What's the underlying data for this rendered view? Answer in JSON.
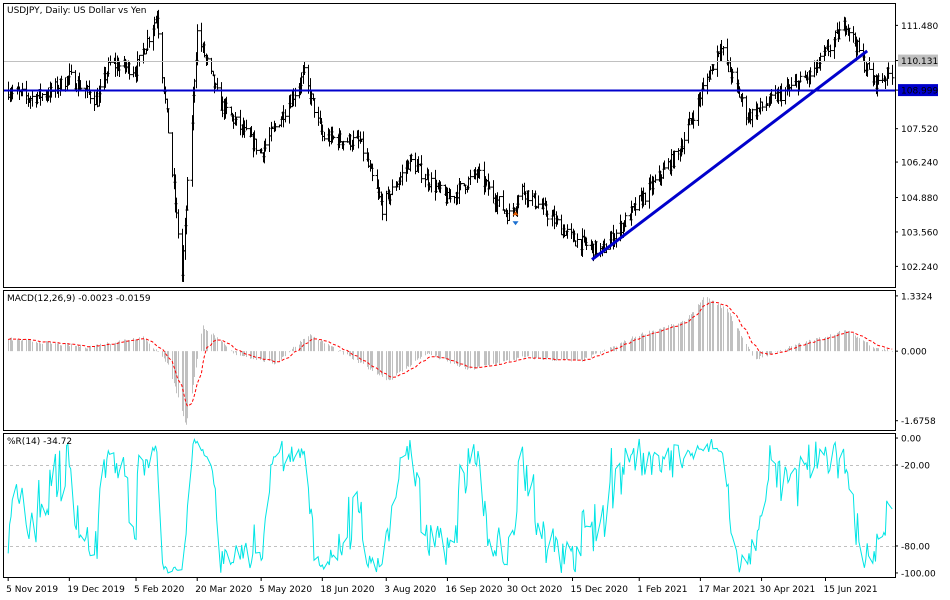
{
  "chart_data": [
    {
      "type": "bar",
      "panel": "price",
      "title": "USDJPY, Daily:  US Dollar vs Yen",
      "ylim": [
        101.45,
        112.3
      ],
      "yticks": [
        "111.480",
        "110.131",
        "108.999",
        "107.520",
        "106.240",
        "104.880",
        "103.560",
        "102.240"
      ],
      "ytick_values": [
        111.48,
        110.131,
        108.999,
        107.52,
        106.24,
        104.88,
        103.56,
        102.24
      ],
      "reference_lines": [
        {
          "name": "level",
          "value": 108.999,
          "color": "#0000cc",
          "label": "108.999"
        },
        {
          "name": "last-price",
          "value": 110.131,
          "color": "#c0c0c0",
          "label": "110.131"
        }
      ],
      "trendline": {
        "from": {
          "date": "2020-12-29",
          "value": 102.5
        },
        "to": {
          "date": "2021-07-15",
          "value": 110.5
        },
        "color": "#0000cc"
      },
      "price_path": [
        [
          "2019-11-05",
          109.0
        ],
        [
          "2019-11-20",
          108.7
        ],
        [
          "2019-12-05",
          108.9
        ],
        [
          "2019-12-19",
          109.5
        ],
        [
          "2020-01-08",
          108.6
        ],
        [
          "2020-01-17",
          110.0
        ],
        [
          "2020-02-05",
          109.8
        ],
        [
          "2020-02-20",
          111.9
        ],
        [
          "2020-03-09",
          101.9
        ],
        [
          "2020-03-20",
          111.2
        ],
        [
          "2020-04-05",
          108.5
        ],
        [
          "2020-05-05",
          106.6
        ],
        [
          "2020-06-05",
          109.6
        ],
        [
          "2020-06-18",
          107.2
        ],
        [
          "2020-07-15",
          107.0
        ],
        [
          "2020-07-31",
          104.5
        ],
        [
          "2020-08-20",
          106.3
        ],
        [
          "2020-09-16",
          104.8
        ],
        [
          "2020-10-07",
          105.8
        ],
        [
          "2020-10-30",
          104.2
        ],
        [
          "2020-11-09",
          105.2
        ],
        [
          "2020-12-15",
          103.3
        ],
        [
          "2021-01-05",
          102.8
        ],
        [
          "2021-02-01",
          104.7
        ],
        [
          "2021-03-01",
          106.6
        ],
        [
          "2021-03-31",
          110.7
        ],
        [
          "2021-04-20",
          108.0
        ],
        [
          "2021-05-10",
          108.7
        ],
        [
          "2021-06-05",
          109.6
        ],
        [
          "2021-06-30",
          111.6
        ],
        [
          "2021-07-12",
          110.1
        ],
        [
          "2021-07-20",
          109.3
        ],
        [
          "2021-08-02",
          109.7
        ]
      ],
      "marker": {
        "date": "2020-11-04",
        "value": 104.2
      }
    },
    {
      "type": "bar",
      "panel": "macd",
      "title": "MACD(12,26,9) -0.0023 -0.0159",
      "ylim": [
        -1.9,
        1.45
      ],
      "yticks": [
        "1.3324",
        "0.000",
        "-1.6758"
      ],
      "ytick_values": [
        1.3324,
        0.0,
        -1.6758
      ],
      "series": [
        {
          "name": "MACD",
          "style": "histogram",
          "color": "#c0c0c0"
        },
        {
          "name": "Signal",
          "style": "dashed",
          "color": "#ff0000"
        }
      ],
      "macd_path": [
        [
          "2019-11-05",
          0.3
        ],
        [
          "2020-01-01",
          0.1
        ],
        [
          "2020-02-10",
          0.35
        ],
        [
          "2020-02-28",
          -0.3
        ],
        [
          "2020-03-12",
          -1.8
        ],
        [
          "2020-03-24",
          0.6
        ],
        [
          "2020-04-15",
          -0.05
        ],
        [
          "2020-05-15",
          -0.3
        ],
        [
          "2020-06-08",
          0.4
        ],
        [
          "2020-06-25",
          0.1
        ],
        [
          "2020-08-05",
          -0.7
        ],
        [
          "2020-09-01",
          -0.05
        ],
        [
          "2020-10-01",
          -0.45
        ],
        [
          "2020-11-10",
          -0.15
        ],
        [
          "2020-12-20",
          -0.25
        ],
        [
          "2021-01-10",
          0.05
        ],
        [
          "2021-02-01",
          0.4
        ],
        [
          "2021-03-05",
          0.7
        ],
        [
          "2021-03-20",
          1.3
        ],
        [
          "2021-04-05",
          1.0
        ],
        [
          "2021-04-25",
          -0.2
        ],
        [
          "2021-05-25",
          0.15
        ],
        [
          "2021-06-30",
          0.5
        ],
        [
          "2021-07-20",
          0.1
        ],
        [
          "2021-08-02",
          -0.0023
        ]
      ]
    },
    {
      "type": "line",
      "panel": "williams",
      "title": "%R(14) -34.72",
      "ylim": [
        -103,
        3
      ],
      "yticks": [
        "0.00",
        "-20.00",
        "-80.00",
        "-100.00"
      ],
      "ytick_values": [
        0,
        -20,
        -80,
        -100
      ],
      "levels": [
        -20,
        -80
      ],
      "color": "#00e5e5"
    }
  ],
  "x_axis": {
    "labels": [
      "5 Nov 2019",
      "19 Dec 2019",
      "5 Feb 2020",
      "20 Mar 2020",
      "5 May 2020",
      "18 Jun 2020",
      "3 Aug 2020",
      "16 Sep 2020",
      "30 Oct 2020",
      "15 Dec 2020",
      "1 Feb 2021",
      "17 Mar 2021",
      "30 Apr 2021",
      "15 Jun 2021"
    ],
    "label_dates": [
      "2019-11-05",
      "2019-12-19",
      "2020-02-05",
      "2020-03-20",
      "2020-05-05",
      "2020-06-18",
      "2020-08-03",
      "2020-09-16",
      "2020-10-30",
      "2020-12-15",
      "2021-02-01",
      "2021-03-17",
      "2021-04-30",
      "2021-06-15"
    ]
  },
  "colors": {
    "bars": "#000000",
    "frame": "#000000",
    "level_line": "#0000cc",
    "signal": "#ff0000",
    "histogram": "#c0c0c0",
    "wpr": "#00e5e5",
    "grid_dash": "#c0c0c0"
  }
}
